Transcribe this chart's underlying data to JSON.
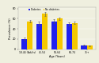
{
  "categories": [
    "18-44 (Adults)",
    "45-54",
    "55-64",
    "65-74",
    "75+"
  ],
  "diabetes": [
    20,
    50,
    55,
    50,
    8
  ],
  "no_diabetes": [
    55,
    70,
    60,
    52,
    7
  ],
  "diabetes_err": [
    3,
    4,
    4,
    3,
    1.5
  ],
  "no_diabetes_err": [
    2,
    4,
    3,
    3,
    1
  ],
  "diabetes_color": "#2020ee",
  "no_diabetes_color": "#f5c800",
  "xlabel": "Age (Years)",
  "ylabel": "Prevalence (%)",
  "ylim": [
    0,
    82
  ],
  "yticks": [
    0,
    20,
    40,
    60,
    80
  ],
  "legend_labels": [
    "Diabetes",
    "No diabetes"
  ],
  "background_color": "#efefdf",
  "bar_width": 0.38
}
